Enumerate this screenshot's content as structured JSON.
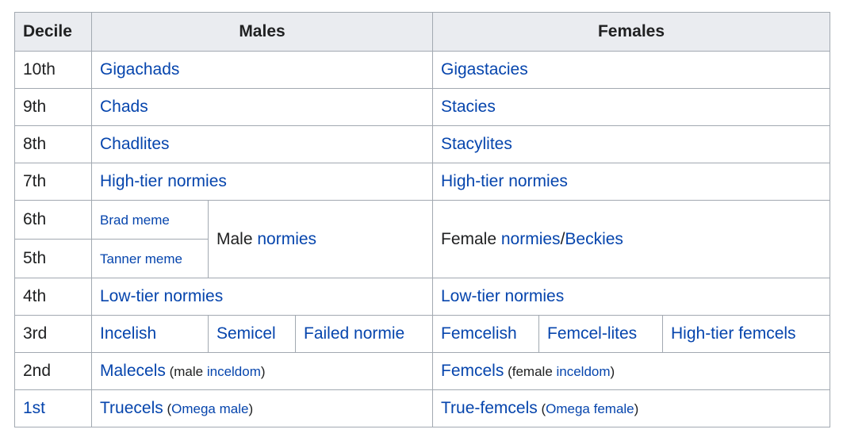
{
  "header": {
    "decile": "Decile",
    "males": "Males",
    "females": "Females"
  },
  "rows": {
    "r10": {
      "decile": "10th",
      "male": "Gigachads",
      "female": "Gigastacies"
    },
    "r9": {
      "decile": "9th",
      "male": "Chads",
      "female": "Stacies"
    },
    "r8": {
      "decile": "8th",
      "male": "Chadlites",
      "female": "Stacylites"
    },
    "r7": {
      "decile": "7th",
      "male": "High-tier normies",
      "female": "High-tier normies"
    },
    "r6": {
      "decile": "6th",
      "male_sub": "Brad meme",
      "male_prefix": "Male ",
      "male_link": "normies",
      "female_prefix": "Female ",
      "female_link1": "normies",
      "female_sep": "/",
      "female_link2": "Beckies"
    },
    "r5": {
      "decile": "5th",
      "male_sub": "Tanner meme"
    },
    "r4": {
      "decile": "4th",
      "male": "Low-tier normies",
      "female": "Low-tier normies"
    },
    "r3": {
      "decile": "3rd",
      "male_a": "Incelish",
      "male_b": "Semicel",
      "male_c": "Failed normie",
      "female_a": "Femcelish",
      "female_b": "Femcel-lites",
      "female_c": "High-tier femcels"
    },
    "r2": {
      "decile": "2nd",
      "male_link": "Malecels",
      "male_note_open": " (male ",
      "male_note_link": "inceldom",
      "male_note_close": ")",
      "female_link": "Femcels",
      "female_note_open": " (female ",
      "female_note_link": "inceldom",
      "female_note_close": ")"
    },
    "r1": {
      "decile": "1st",
      "male_link": "Truecels",
      "male_note_open": " (",
      "male_note_link": "Omega male",
      "male_note_close": ")",
      "female_link": "True-femcels",
      "female_note_open": " (",
      "female_note_link": "Omega female",
      "female_note_close": ")"
    }
  },
  "colors": {
    "link": "#0645ad",
    "text": "#202122",
    "header_bg": "#eaecf0",
    "border": "#a2a9b1"
  }
}
